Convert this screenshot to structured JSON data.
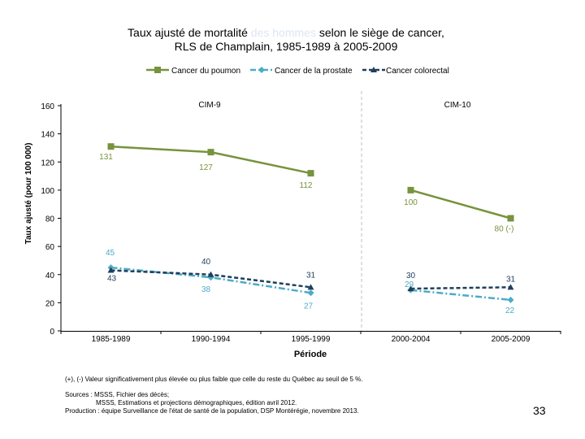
{
  "colors": {
    "lung": "#77933c",
    "prostate": "#4bacc6",
    "colorectal": "#1f3e5b",
    "highlight": "#dce6f2",
    "divider": "#bfbfbf"
  },
  "chart_data": {
    "type": "line",
    "title_parts": {
      "before": "Taux ajusté de mortalité ",
      "highlight": "des hommes",
      "after": " selon le siège de cancer,",
      "line2": "RLS de Champlain, 1985-1989 à 2005-2009"
    },
    "ylabel": "Taux ajusté (pour 100 000)",
    "xlabel": "Période",
    "ylim": [
      0,
      160
    ],
    "yticks": [
      "0",
      "20",
      "40",
      "60",
      "80",
      "100",
      "120",
      "140",
      "160"
    ],
    "categories": [
      "1985-1989",
      "1990-1994",
      "1995-1999",
      "2000-2004",
      "2005-2009"
    ],
    "cim_labels": [
      "CIM-9",
      "CIM-10"
    ],
    "series": [
      {
        "key": "lung",
        "name": "Cancer du poumon",
        "segments": [
          [
            {
              "x": 0,
              "y": 131
            },
            {
              "x": 1,
              "y": 127
            },
            {
              "x": 2,
              "y": 112
            }
          ],
          [
            {
              "x": 3,
              "y": 100
            },
            {
              "x": 4,
              "y": 80
            }
          ]
        ],
        "labels": [
          "131",
          "127",
          "112",
          "100",
          "80 (-)"
        ]
      },
      {
        "key": "prostate",
        "name": "Cancer de la prostate",
        "segments": [
          [
            {
              "x": 0,
              "y": 45
            },
            {
              "x": 1,
              "y": 38
            },
            {
              "x": 2,
              "y": 27
            }
          ],
          [
            {
              "x": 3,
              "y": 29
            },
            {
              "x": 4,
              "y": 22
            }
          ]
        ],
        "labels": [
          "45",
          "38",
          "27",
          "29",
          "22"
        ]
      },
      {
        "key": "colorectal",
        "name": "Cancer colorectal",
        "segments": [
          [
            {
              "x": 0,
              "y": 43
            },
            {
              "x": 1,
              "y": 40
            },
            {
              "x": 2,
              "y": 31
            }
          ],
          [
            {
              "x": 3,
              "y": 30
            },
            {
              "x": 4,
              "y": 31
            }
          ]
        ],
        "labels": [
          "43",
          "40",
          "31",
          "30",
          "31"
        ]
      }
    ]
  },
  "footnotes": {
    "significance": "(+), (-) Valeur significativement plus élevée ou plus faible que celle du reste du Québec au seuil de 5 %.",
    "sources1": "Sources : MSSS, Fichier des décès;",
    "sources2": "MSSS, Estimations et projections démographiques, édition avril 2012.",
    "production": "Production : équipe Surveillance de l'état de santé de la population, DSP Montérégie, novembre 2013."
  },
  "page_number": "33"
}
